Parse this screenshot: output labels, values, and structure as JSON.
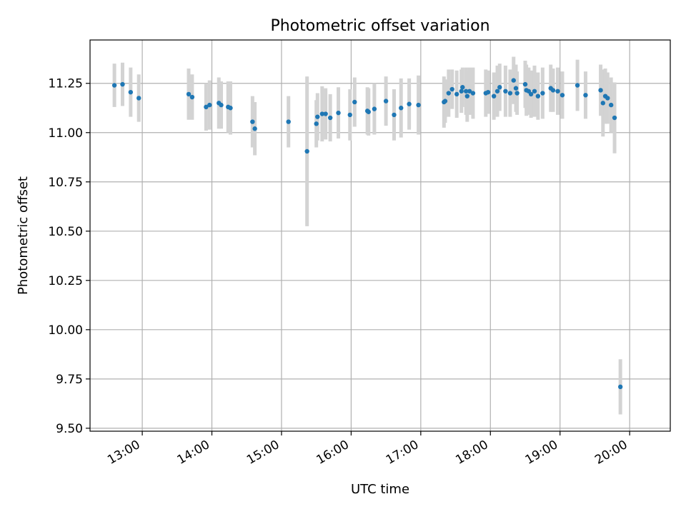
{
  "chart_data": {
    "type": "scatter",
    "title": "Photometric offset variation",
    "xlabel": "UTC time",
    "ylabel": "Photometric offset",
    "xlim": [
      "12:15",
      "20:35"
    ],
    "ylim": [
      9.485,
      11.47
    ],
    "grid": true,
    "x_ticks": [
      "13:00",
      "14:00",
      "15:00",
      "16:00",
      "17:00",
      "18:00",
      "19:00",
      "20:00"
    ],
    "y_ticks": [
      "9.50",
      "9.75",
      "10.00",
      "10.25",
      "10.50",
      "10.75",
      "11.00",
      "11.25"
    ],
    "colors": {
      "point": "#1f77b4",
      "errorbar": "#d3d3d3",
      "grid": "#b0b0b0"
    },
    "series": [
      {
        "x": [
          "12:36",
          "12:43",
          "12:50",
          "12:57",
          "13:40",
          "13:43",
          "13:55",
          "13:58",
          "14:06",
          "14:08",
          "14:14",
          "14:16",
          "14:35",
          "14:37",
          "15:06",
          "15:22",
          "15:30",
          "15:31",
          "15:35",
          "15:38",
          "15:42",
          "15:49",
          "15:59",
          "16:03",
          "16:14",
          "16:15",
          "16:20",
          "16:30",
          "16:37",
          "16:43",
          "16:50",
          "16:58",
          "17:20",
          "17:21",
          "17:24",
          "17:27",
          "17:31",
          "17:35",
          "17:36",
          "17:39",
          "17:40",
          "17:42",
          "17:45",
          "17:56",
          "17:58",
          "18:03",
          "18:06",
          "18:08",
          "18:13",
          "18:17",
          "18:20",
          "18:22",
          "18:23",
          "18:30",
          "18:31",
          "18:33",
          "18:35",
          "18:38",
          "18:41",
          "18:45",
          "18:52",
          "18:54",
          "18:58",
          "19:02",
          "19:15",
          "19:22",
          "19:35",
          "19:37",
          "19:39",
          "19:41",
          "19:44",
          "19:47",
          "19:52"
        ],
        "y": [
          11.24,
          11.245,
          11.205,
          11.175,
          11.195,
          11.18,
          11.13,
          11.14,
          11.15,
          11.14,
          11.13,
          11.125,
          11.055,
          11.02,
          11.055,
          10.905,
          11.045,
          11.08,
          11.095,
          11.095,
          11.075,
          11.1,
          11.09,
          11.155,
          11.11,
          11.105,
          11.12,
          11.16,
          11.09,
          11.125,
          11.145,
          11.14,
          11.155,
          11.16,
          11.2,
          11.22,
          11.195,
          11.21,
          11.23,
          11.21,
          11.185,
          11.21,
          11.2,
          11.2,
          11.205,
          11.185,
          11.21,
          11.23,
          11.21,
          11.2,
          11.265,
          11.225,
          11.2,
          11.245,
          11.215,
          11.21,
          11.195,
          11.21,
          11.185,
          11.2,
          11.225,
          11.215,
          11.21,
          11.19,
          11.24,
          11.19,
          11.215,
          11.15,
          11.185,
          11.175,
          11.14,
          11.075,
          9.71
        ],
        "error": [
          0.11,
          0.11,
          0.125,
          0.12,
          0.13,
          0.115,
          0.12,
          0.125,
          0.13,
          0.12,
          0.13,
          0.135,
          0.13,
          0.135,
          0.13,
          0.38,
          0.12,
          0.12,
          0.14,
          0.13,
          0.12,
          0.13,
          0.13,
          0.125,
          0.12,
          0.12,
          0.13,
          0.125,
          0.13,
          0.15,
          0.13,
          0.15,
          0.13,
          0.11,
          0.12,
          0.1,
          0.12,
          0.11,
          0.1,
          0.12,
          0.13,
          0.12,
          0.13,
          0.12,
          0.11,
          0.12,
          0.13,
          0.12,
          0.13,
          0.12,
          0.12,
          0.12,
          0.11,
          0.12,
          0.13,
          0.12,
          0.12,
          0.13,
          0.12,
          0.13,
          0.12,
          0.11,
          0.12,
          0.12,
          0.13,
          0.12,
          0.13,
          0.17,
          0.14,
          0.13,
          0.14,
          0.18,
          0.14
        ]
      }
    ]
  }
}
